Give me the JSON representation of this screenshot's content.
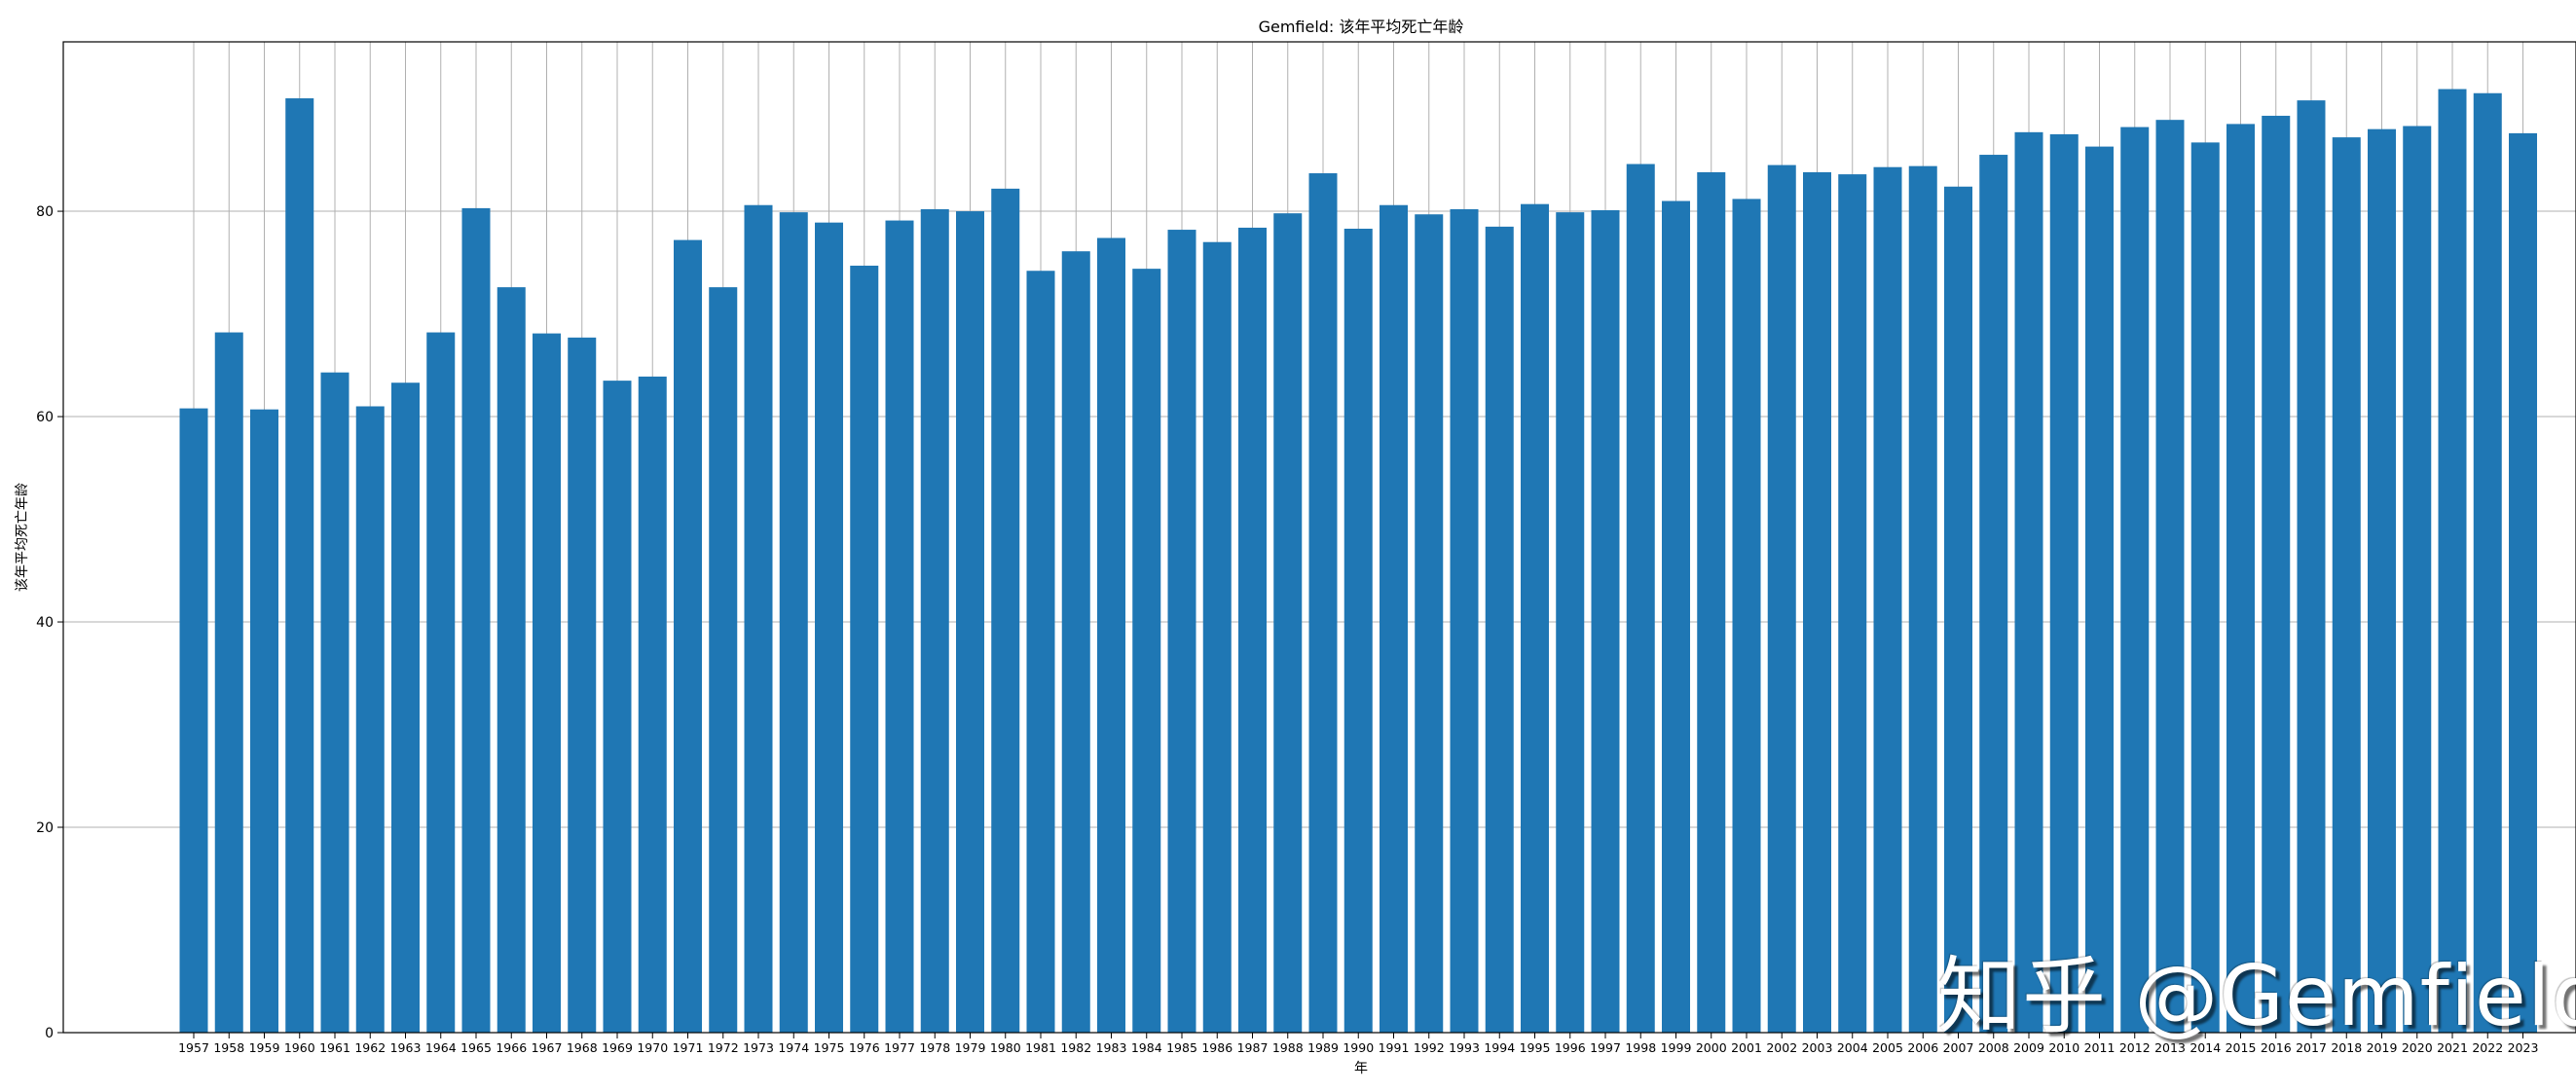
{
  "chart_data": {
    "type": "bar",
    "title": "Gemfield: 该年平均死亡年龄",
    "xlabel": "年",
    "ylabel": "该年平均死亡年龄",
    "ylim": [
      0,
      96.5
    ],
    "yticks": [
      0,
      20,
      40,
      60,
      80
    ],
    "grid": true,
    "bar_color": "#1f77b4",
    "categories": [
      "1957",
      "1958",
      "1959",
      "1960",
      "1961",
      "1962",
      "1963",
      "1964",
      "1965",
      "1966",
      "1967",
      "1968",
      "1969",
      "1970",
      "1971",
      "1972",
      "1973",
      "1974",
      "1975",
      "1976",
      "1977",
      "1978",
      "1979",
      "1980",
      "1981",
      "1982",
      "1983",
      "1984",
      "1985",
      "1986",
      "1987",
      "1988",
      "1989",
      "1990",
      "1991",
      "1992",
      "1993",
      "1994",
      "1995",
      "1996",
      "1997",
      "1998",
      "1999",
      "2000",
      "2001",
      "2002",
      "2003",
      "2004",
      "2005",
      "2006",
      "2007",
      "2008",
      "2009",
      "2010",
      "2011",
      "2012",
      "2013",
      "2014",
      "2015",
      "2016",
      "2017",
      "2018",
      "2019",
      "2020",
      "2021",
      "2022",
      "2023"
    ],
    "values": [
      60.8,
      68.2,
      60.7,
      91.0,
      64.3,
      61.0,
      63.3,
      68.2,
      80.3,
      72.6,
      68.1,
      67.7,
      63.5,
      63.9,
      77.2,
      72.6,
      80.6,
      79.9,
      78.9,
      74.7,
      79.1,
      80.2,
      80.0,
      82.2,
      74.2,
      76.1,
      77.4,
      74.4,
      78.2,
      77.0,
      78.4,
      79.8,
      83.7,
      78.3,
      80.6,
      79.7,
      80.2,
      78.5,
      80.7,
      79.9,
      80.1,
      84.6,
      81.0,
      83.8,
      81.2,
      84.5,
      83.8,
      83.6,
      84.3,
      84.4,
      82.4,
      85.5,
      87.7,
      87.5,
      86.3,
      88.2,
      88.9,
      86.7,
      88.5,
      89.3,
      90.8,
      87.2,
      88.0,
      88.3,
      91.9,
      91.5,
      87.6
    ]
  },
  "watermark": "知乎 @Gemfield"
}
